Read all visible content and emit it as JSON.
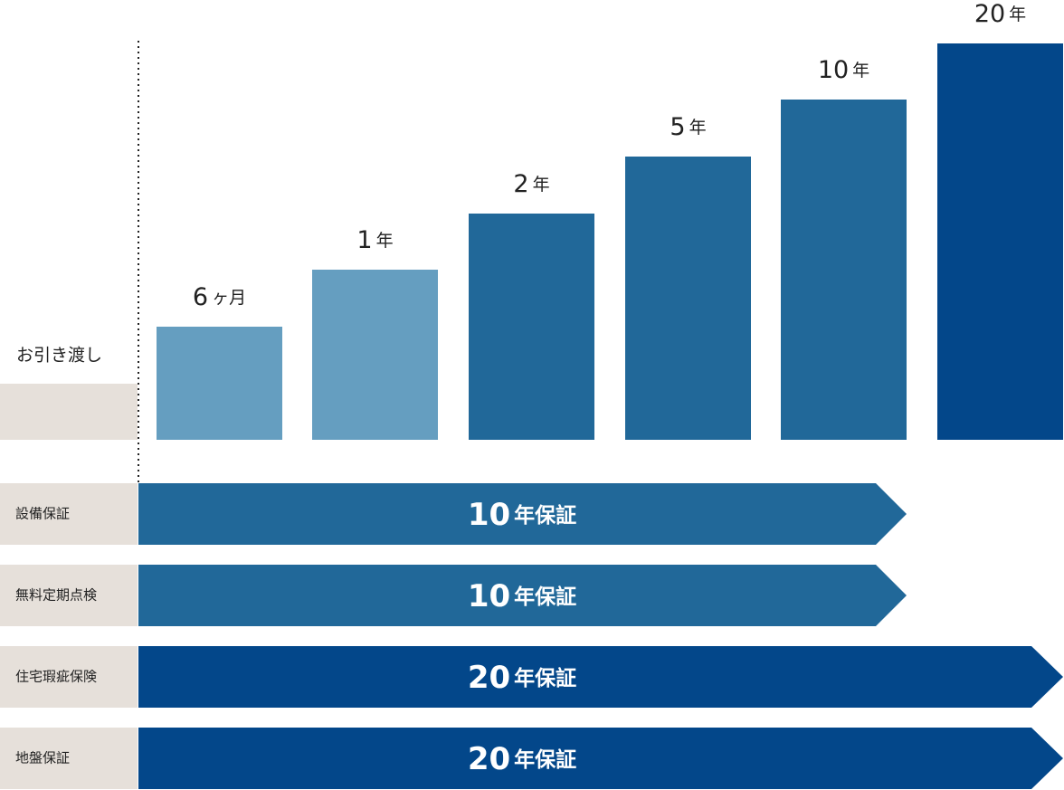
{
  "handover": "お引き渡し",
  "steps": [
    {
      "num": "6",
      "unit": "ヶ月"
    },
    {
      "num": "1",
      "unit": "年"
    },
    {
      "num": "2",
      "unit": "年"
    },
    {
      "num": "5",
      "unit": "年"
    },
    {
      "num": "10",
      "unit": "年"
    },
    {
      "num": "20",
      "unit": "年"
    }
  ],
  "rows": [
    {
      "name": "設備保証",
      "num": "10",
      "unit": "年保証"
    },
    {
      "name": "無料定期点検",
      "num": "10",
      "unit": "年保証"
    },
    {
      "name": "住宅瑕疵保険",
      "num": "20",
      "unit": "年保証"
    },
    {
      "name": "地盤保証",
      "num": "20",
      "unit": "年保証"
    }
  ]
}
